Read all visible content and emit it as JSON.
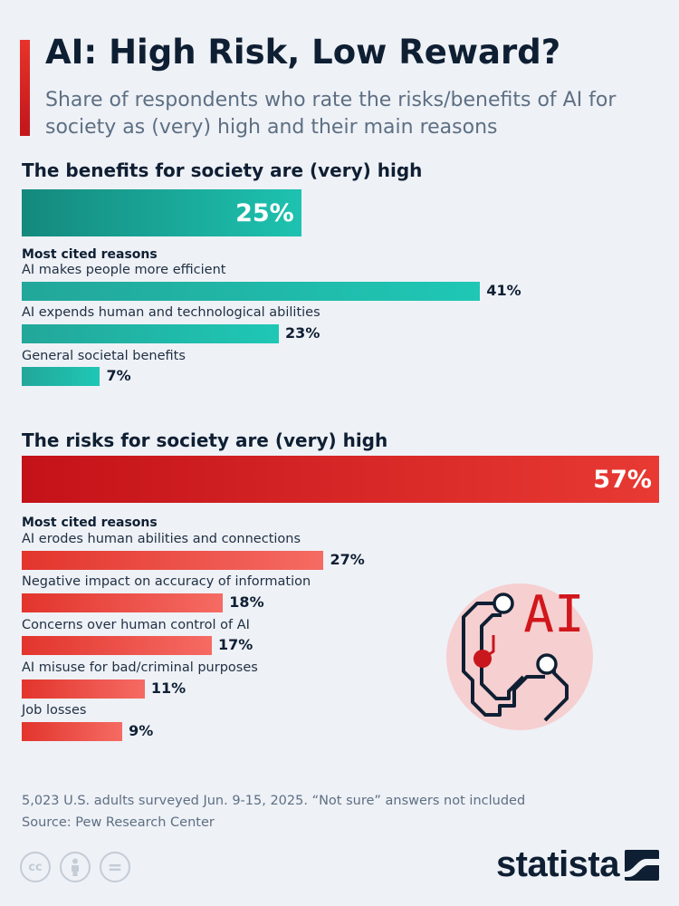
{
  "title": "AI: High Risk, Low Reward?",
  "subtitle": "Share of respondents who rate the risks/benefits of AI for society as (very) high and their main reasons",
  "chart_data": [
    {
      "type": "bar",
      "title": "The benefits for society are (very) high",
      "total_value": 25,
      "total_label": "25%",
      "reasons_heading": "Most cited reasons",
      "categories": [
        "AI makes people more efficient",
        "AI expends human and technological abilities",
        "General societal benefits"
      ],
      "values": [
        41,
        23,
        7
      ],
      "value_labels": [
        "41%",
        "23%",
        "7%"
      ],
      "color": "#1fb8a8"
    },
    {
      "type": "bar",
      "title": "The risks for society are (very) high",
      "total_value": 57,
      "total_label": "57%",
      "reasons_heading": "Most cited reasons",
      "categories": [
        "AI erodes human abilities and connections",
        "Negative impact on accuracy of information",
        "Concerns over human control of AI",
        "AI misuse for bad/criminal purposes",
        "Job losses"
      ],
      "values": [
        27,
        18,
        17,
        11,
        9
      ],
      "value_labels": [
        "27%",
        "18%",
        "17%",
        "11%",
        "9%"
      ],
      "color": "#e32b24"
    }
  ],
  "illustration": {
    "label": "AI",
    "icon": "ai-circuit-icon"
  },
  "footer": {
    "note": "5,023 U.S. adults surveyed Jun. 9-15, 2025. “Not sure” answers not included",
    "source": "Source: Pew Research Center",
    "license_icons": [
      "cc-icon",
      "attribution-icon",
      "no-derivatives-icon"
    ],
    "cc_text": "cc",
    "nd_text": "=",
    "brand": "statista"
  }
}
